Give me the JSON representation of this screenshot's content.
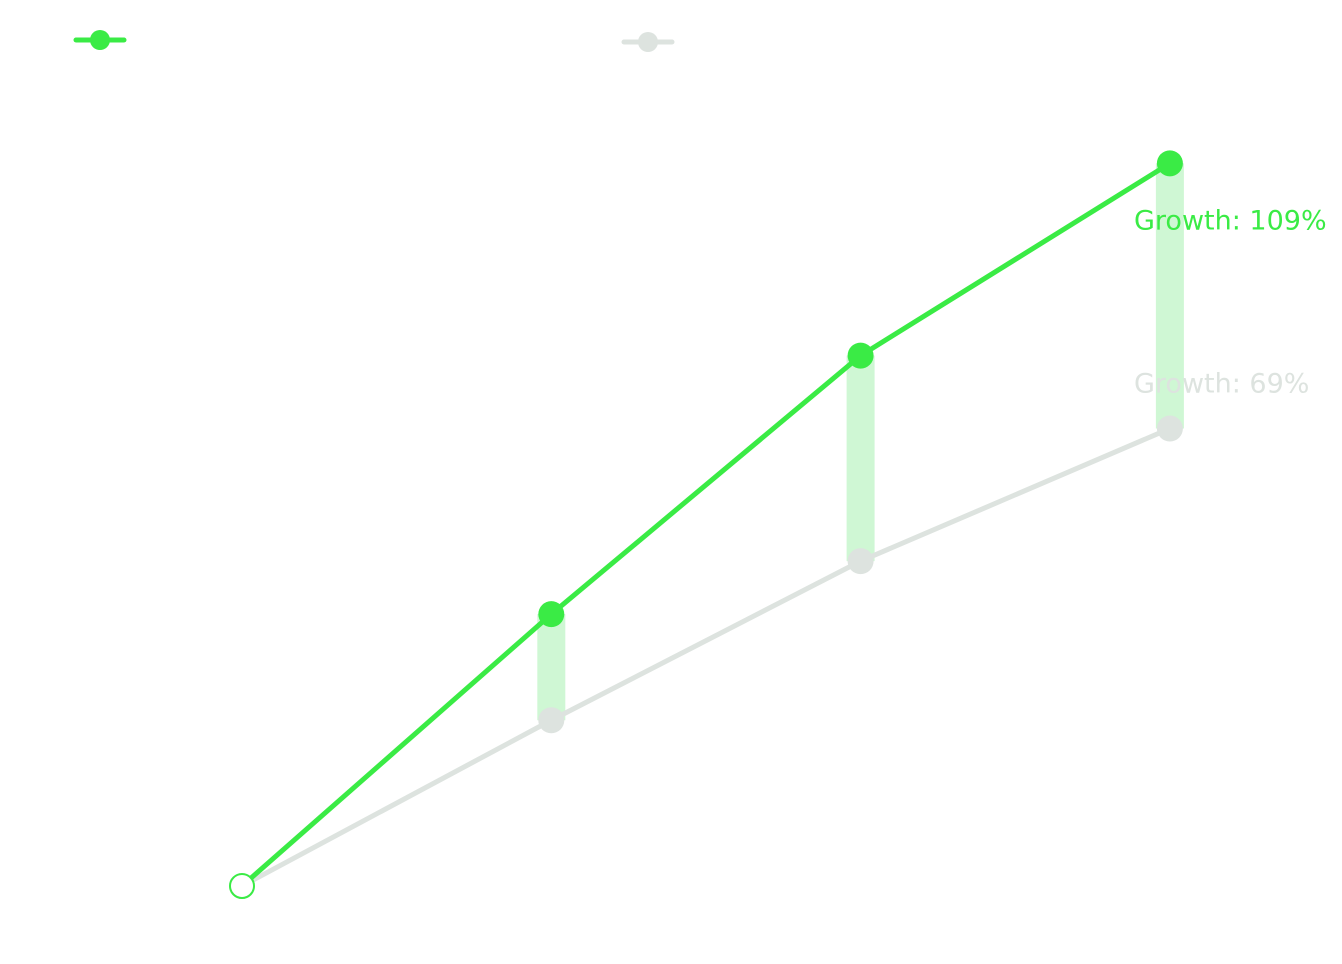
{
  "chart_data": {
    "type": "line",
    "title": "",
    "xlabel": "",
    "ylabel": "",
    "x": [
      0,
      1,
      2,
      3
    ],
    "ylim": [
      100,
      215
    ],
    "grid": false,
    "axes_visible": false,
    "legend": "top-left",
    "series": [
      {
        "values": [
          100,
          141,
          180,
          209
        ],
        "color": "#3aeb45",
        "start_marker": "hollow"
      },
      {
        "values": [
          100,
          125,
          149,
          169
        ],
        "color": "#dde3df"
      }
    ],
    "gap_bar_color": "#cff7d4",
    "annotations": [
      {
        "series": 0,
        "text": "Growth: 109%",
        "color": "#3aeb45"
      },
      {
        "series": 1,
        "text": "Growth: 69%",
        "color": "#dde3df"
      }
    ]
  }
}
